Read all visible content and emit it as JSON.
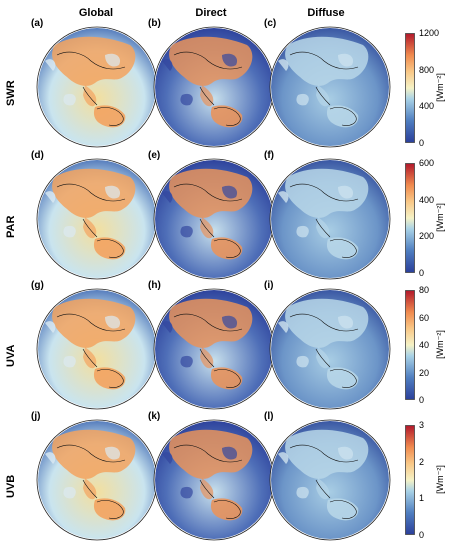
{
  "columns": [
    "Global",
    "Direct",
    "Diffuse"
  ],
  "rows": [
    {
      "label": "SWR",
      "ticks": [
        "0",
        "400",
        "800",
        "1200"
      ],
      "unit": "[Wm⁻²]",
      "panels": [
        "(a)",
        "(b)",
        "(c)"
      ]
    },
    {
      "label": "PAR",
      "ticks": [
        "0",
        "200",
        "400",
        "600"
      ],
      "unit": "[Wm⁻²]",
      "panels": [
        "(d)",
        "(e)",
        "(f)"
      ]
    },
    {
      "label": "UVA",
      "ticks": [
        "0",
        "20",
        "40",
        "60",
        "80"
      ],
      "unit": "[Wm⁻²]",
      "panels": [
        "(g)",
        "(h)",
        "(i)"
      ]
    },
    {
      "label": "UVB",
      "ticks": [
        "0",
        "1",
        "2",
        "3"
      ],
      "unit": "[Wm⁻²]",
      "panels": [
        "(j)",
        "(k)",
        "(l)"
      ]
    }
  ],
  "colors": {
    "scale_low": "#2b3f9a",
    "scale_mid": "#f5f2c6",
    "scale_high": "#b2182b"
  }
}
